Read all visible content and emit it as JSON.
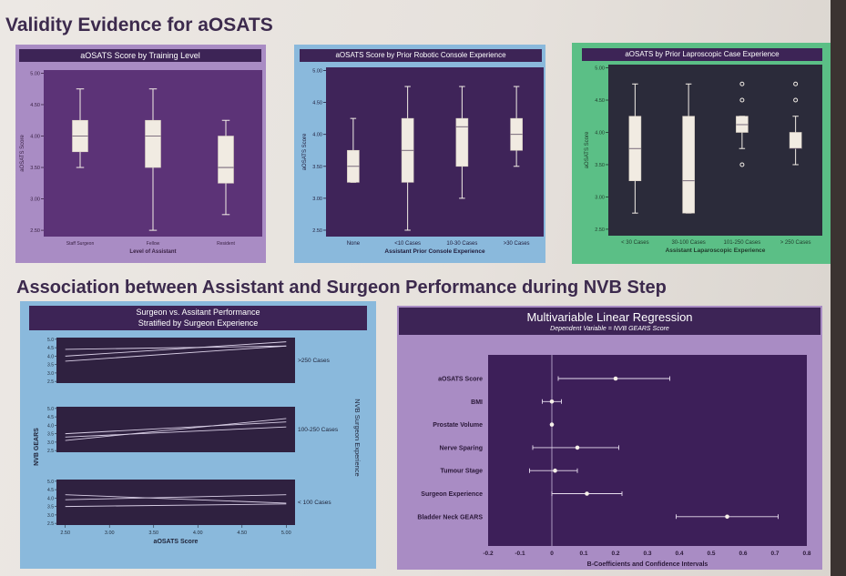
{
  "headings": {
    "validity": "Validity Evidence for aOSATS",
    "association": "Association between Assistant and Surgeon Performance during NVB Step"
  },
  "colors": {
    "purple_light": "#a98cc4",
    "purple_dark": "#4c2c67",
    "blue": "#8ab9dc",
    "green": "#5bbf86",
    "heading": "#3c2a4d"
  },
  "chart_data": [
    {
      "type": "box",
      "title": "aOSATS Score by Training Level",
      "xlabel": "Level of Assistant",
      "ylabel": "aOSATS Score",
      "categories": [
        "Staff Surgeon",
        "Fellow",
        "Resident"
      ],
      "yticks": [
        "2.50",
        "3.00",
        "3.50",
        "4.00",
        "4.50",
        "5.00"
      ],
      "ylim": [
        2.4,
        5.05
      ],
      "boxes": [
        {
          "min": 3.5,
          "q1": 3.75,
          "median": 4.0,
          "q3": 4.25,
          "max": 4.75,
          "outliers": []
        },
        {
          "min": 2.5,
          "q1": 3.5,
          "median": 4.0,
          "q3": 4.25,
          "max": 4.75,
          "outliers": []
        },
        {
          "min": 2.75,
          "q1": 3.25,
          "median": 3.5,
          "q3": 4.0,
          "max": 4.25,
          "outliers": []
        }
      ]
    },
    {
      "type": "box",
      "title": "aOSATS Score by Prior Robotic Console Experience",
      "xlabel": "Assistant Prior Console Experience",
      "ylabel": "aOSATS Score",
      "categories": [
        "None",
        "<10 Cases",
        "10-30 Cases",
        ">30 Cases"
      ],
      "yticks": [
        "2.50",
        "3.00",
        "3.50",
        "4.00",
        "4.50",
        "5.00"
      ],
      "ylim": [
        2.4,
        5.05
      ],
      "boxes": [
        {
          "min": 3.25,
          "q1": 3.25,
          "median": 3.5,
          "q3": 3.75,
          "max": 4.25,
          "outliers": []
        },
        {
          "min": 2.5,
          "q1": 3.25,
          "median": 3.75,
          "q3": 4.25,
          "max": 4.75,
          "outliers": []
        },
        {
          "min": 3.0,
          "q1": 3.5,
          "median": 4.12,
          "q3": 4.25,
          "max": 4.75,
          "outliers": []
        },
        {
          "min": 3.5,
          "q1": 3.75,
          "median": 4.0,
          "q3": 4.25,
          "max": 4.75,
          "outliers": []
        }
      ]
    },
    {
      "type": "box",
      "title": "aOSATS by Prior Laproscopic Case Experience",
      "xlabel": "Assistant Laparoscopic Experience",
      "ylabel": "aOSATS Score",
      "categories": [
        "< 30 Cases",
        "30-100 Cases",
        "101-250 Cases",
        "> 250 Cases"
      ],
      "yticks": [
        "2.50",
        "3.00",
        "3.50",
        "4.00",
        "4.50",
        "5.00"
      ],
      "ylim": [
        2.4,
        5.05
      ],
      "boxes": [
        {
          "min": 2.75,
          "q1": 3.25,
          "median": 3.75,
          "q3": 4.25,
          "max": 4.75,
          "outliers": []
        },
        {
          "min": 2.75,
          "q1": 2.75,
          "median": 3.25,
          "q3": 4.25,
          "max": 4.75,
          "outliers": []
        },
        {
          "min": 3.75,
          "q1": 4.0,
          "median": 4.12,
          "q3": 4.25,
          "max": 4.25,
          "outliers": [
            4.75,
            4.5,
            3.5
          ]
        },
        {
          "min": 3.5,
          "q1": 3.75,
          "median": 3.75,
          "q3": 4.0,
          "max": 4.25,
          "outliers": [
            4.75,
            4.5
          ]
        }
      ]
    },
    {
      "type": "line",
      "title": "Surgeon vs. Assitant Performance",
      "subtitle": "Stratified by Surgeon Experience",
      "xlabel": "aOSATS Score",
      "ylabel": "NVB GEARS",
      "right_label": "NVB Surgeon Experience",
      "xticks": [
        "2.50",
        "3.00",
        "3.50",
        "4.00",
        "4.50",
        "5.00"
      ],
      "xlim": [
        2.4,
        5.1
      ],
      "yticks": [
        "2.5",
        "3.0",
        "3.5",
        "4.0",
        "4.5",
        "5.0"
      ],
      "ylim": [
        2.4,
        5.1
      ],
      "facets": [
        {
          "label": ">250 Cases",
          "lines": [
            [
              [
                2.5,
                4.0
              ],
              [
                5.0,
                4.85
              ]
            ],
            [
              [
                2.5,
                3.7
              ],
              [
                5.0,
                4.6
              ]
            ],
            [
              [
                2.5,
                4.4
              ],
              [
                5.0,
                4.6
              ]
            ]
          ]
        },
        {
          "label": "100-250 Cases",
          "lines": [
            [
              [
                2.5,
                3.1
              ],
              [
                5.0,
                4.4
              ]
            ],
            [
              [
                2.5,
                3.5
              ],
              [
                5.0,
                4.2
              ]
            ],
            [
              [
                2.5,
                3.3
              ],
              [
                5.0,
                3.9
              ]
            ]
          ]
        },
        {
          "label": "< 100 Cases",
          "lines": [
            [
              [
                2.5,
                4.2
              ],
              [
                5.0,
                3.7
              ]
            ],
            [
              [
                2.5,
                3.9
              ],
              [
                5.0,
                4.2
              ]
            ],
            [
              [
                2.5,
                3.5
              ],
              [
                5.0,
                3.65
              ]
            ]
          ]
        }
      ]
    },
    {
      "type": "forest",
      "title": "Multivariable Linear Regression",
      "subtitle": "Dependent Variable = NVB GEARS Score",
      "xlabel": "B-Coefficients and Confidence Intervals",
      "xticks": [
        "-0.2",
        "-0.1",
        "0",
        "0.1",
        "0.2",
        "0.3",
        "0.4",
        "0.5",
        "0.6",
        "0.7",
        "0.8"
      ],
      "xlim": [
        -0.2,
        0.8
      ],
      "rows": [
        {
          "label": "aOSATS Score",
          "estimate": 0.2,
          "low": 0.02,
          "high": 0.37
        },
        {
          "label": "BMI",
          "estimate": 0.0,
          "low": -0.03,
          "high": 0.03
        },
        {
          "label": "Prostate Volume",
          "estimate": 0.0,
          "low": 0.0,
          "high": 0.0
        },
        {
          "label": "Nerve Sparing",
          "estimate": 0.08,
          "low": -0.06,
          "high": 0.21
        },
        {
          "label": "Tumour Stage",
          "estimate": 0.01,
          "low": -0.07,
          "high": 0.08
        },
        {
          "label": "Surgeon Experience",
          "estimate": 0.11,
          "low": 0.0,
          "high": 0.22
        },
        {
          "label": "Bladder Neck GEARS",
          "estimate": 0.55,
          "low": 0.39,
          "high": 0.71
        }
      ]
    }
  ]
}
